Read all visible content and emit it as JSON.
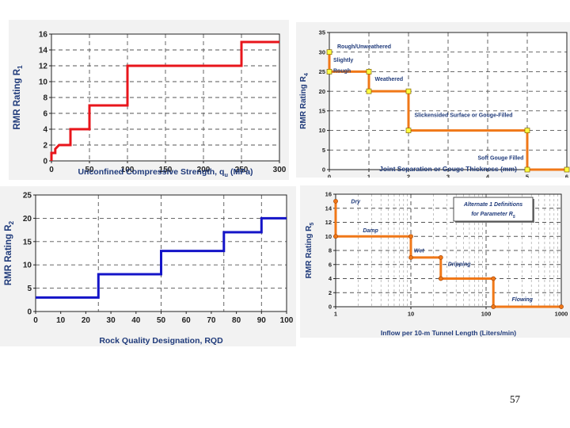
{
  "page_number": "57",
  "colors": {
    "panel_bg": "#f2f2f2",
    "axis_label": "#1f3a7a",
    "grid": "#555555",
    "r1_line": "#e8151b",
    "r2_line": "#1414c8",
    "r4_line": "#f07818",
    "r5_line": "#f07818",
    "marker_fill": "#ffff40",
    "annotation": "#1f3a7a"
  },
  "chart_data": [
    {
      "id": "r1",
      "type": "line",
      "step": true,
      "xlabel": "Unconfined Compressive Strength, q",
      "xlabel_sub": "u",
      "xlabel_suffix": " (MPa)",
      "ylabel": "RMR Rating R",
      "ylabel_sub": "1",
      "xlim": [
        0,
        300
      ],
      "ylim": [
        0,
        16
      ],
      "xticks": [
        "0",
        "50",
        "100",
        "150",
        "200",
        "250",
        "300"
      ],
      "xtick_values": [
        0,
        50,
        100,
        150,
        200,
        250,
        300
      ],
      "yticks": [
        "0",
        "2",
        "4",
        "6",
        "8",
        "10",
        "12",
        "14",
        "16"
      ],
      "ytick_values": [
        0,
        2,
        4,
        6,
        8,
        10,
        12,
        14,
        16
      ],
      "x_gridlines": [
        50,
        100,
        150,
        200,
        250
      ],
      "y_gridlines": [
        2,
        4,
        6,
        8,
        10,
        12,
        14
      ],
      "grid": "dashed",
      "series": [
        {
          "points": [
            [
              0,
              0
            ],
            [
              0,
              1
            ],
            [
              5,
              1
            ],
            [
              5,
              1.5
            ],
            [
              10,
              2
            ],
            [
              25,
              2
            ],
            [
              25,
              4
            ],
            [
              50,
              4
            ],
            [
              50,
              7
            ],
            [
              100,
              7
            ],
            [
              100,
              12
            ],
            [
              250,
              12
            ],
            [
              250,
              15
            ],
            [
              300,
              15
            ]
          ]
        }
      ],
      "markers": []
    },
    {
      "id": "r4",
      "type": "line",
      "step": true,
      "xlabel": "Joint Separation or Gouge Thickness (mm)",
      "ylabel": "RMR Rating R",
      "ylabel_sub": "4",
      "xlim": [
        0,
        6
      ],
      "ylim": [
        0,
        35
      ],
      "xticks": [
        "0",
        "1",
        "2",
        "3",
        "4",
        "5",
        "6"
      ],
      "xtick_values": [
        0,
        1,
        2,
        3,
        4,
        5,
        6
      ],
      "yticks": [
        "0",
        "5",
        "10",
        "15",
        "20",
        "25",
        "30",
        "35"
      ],
      "ytick_values": [
        0,
        5,
        10,
        15,
        20,
        25,
        30,
        35
      ],
      "x_gridlines": [
        1,
        2,
        3,
        4,
        5
      ],
      "y_gridlines": [
        5,
        10,
        15,
        20,
        25,
        30
      ],
      "grid": "dashed",
      "series": [
        {
          "points": [
            [
              0,
              30
            ],
            [
              0,
              25
            ],
            [
              1,
              25
            ],
            [
              1,
              20
            ],
            [
              2,
              20
            ],
            [
              2,
              10
            ],
            [
              5,
              10
            ],
            [
              5,
              0
            ],
            [
              6,
              0
            ]
          ]
        }
      ],
      "markers": [
        [
          0,
          30
        ],
        [
          0,
          25
        ],
        [
          1,
          25
        ],
        [
          1,
          20
        ],
        [
          2,
          20
        ],
        [
          2,
          10
        ],
        [
          5,
          10
        ],
        [
          5,
          0
        ],
        [
          6,
          0
        ]
      ],
      "annotations": [
        {
          "text": "Rough/Unweathered",
          "x": 0.2,
          "y": 31
        },
        {
          "text": "Slightly",
          "x": 0.1,
          "y": 27.5
        },
        {
          "text": "Rough",
          "x": 0.1,
          "y": 24.8
        },
        {
          "text": "Weathered",
          "x": 1.15,
          "y": 22.7
        },
        {
          "text": "Slickensided Surface or Gouge-Filled",
          "x": 2.15,
          "y": 13.5
        },
        {
          "text": "Soft Gouge Filled",
          "x": 3.75,
          "y": 2.5
        }
      ]
    },
    {
      "id": "r2",
      "type": "line",
      "step": true,
      "xlabel": "Rock Quality Designation, RQD",
      "ylabel": "RMR Rating R",
      "ylabel_sub": "2",
      "xlim": [
        0,
        100
      ],
      "ylim": [
        0,
        25
      ],
      "xticks": [
        "0",
        "10",
        "20",
        "30",
        "40",
        "50",
        "60",
        "70",
        "80",
        "90",
        "100"
      ],
      "xtick_values": [
        0,
        10,
        20,
        30,
        40,
        50,
        60,
        70,
        80,
        90,
        100
      ],
      "yticks": [
        "0",
        "5",
        "10",
        "15",
        "20",
        "25"
      ],
      "ytick_values": [
        0,
        5,
        10,
        15,
        20,
        25
      ],
      "x_gridlines": [
        25,
        50,
        75,
        90
      ],
      "y_gridlines": [
        5,
        10,
        15,
        20
      ],
      "grid": "dashed",
      "series": [
        {
          "points": [
            [
              0,
              3
            ],
            [
              25,
              3
            ],
            [
              25,
              8
            ],
            [
              50,
              8
            ],
            [
              50,
              13
            ],
            [
              75,
              13
            ],
            [
              75,
              17
            ],
            [
              90,
              17
            ],
            [
              90,
              20
            ],
            [
              100,
              20
            ]
          ]
        }
      ],
      "markers": []
    },
    {
      "id": "r5",
      "type": "line",
      "step": true,
      "xscale": "log",
      "xlabel": "Inflow per 10-m Tunnel Length (Liters/min)",
      "ylabel": "RMR Rating R",
      "ylabel_sub": "5",
      "xlim": [
        1,
        1000
      ],
      "ylim": [
        0,
        16
      ],
      "xticks": [
        "1",
        "10",
        "100",
        "1000"
      ],
      "xtick_values": [
        1,
        10,
        100,
        1000
      ],
      "yticks": [
        "0",
        "2",
        "4",
        "6",
        "8",
        "10",
        "12",
        "14",
        "16"
      ],
      "ytick_values": [
        0,
        2,
        4,
        6,
        8,
        10,
        12,
        14,
        16
      ],
      "y_gridlines": [
        2,
        4,
        6,
        8,
        10,
        12,
        14
      ],
      "grid": "dashed",
      "series": [
        {
          "points": [
            [
              1,
              15
            ],
            [
              1,
              10
            ],
            [
              10,
              10
            ],
            [
              10,
              7
            ],
            [
              25,
              7
            ],
            [
              25,
              4
            ],
            [
              125,
              4
            ],
            [
              125,
              0
            ],
            [
              1000,
              0
            ]
          ]
        }
      ],
      "markers": [
        [
          1,
          15
        ],
        [
          1,
          10
        ],
        [
          10,
          10
        ],
        [
          10,
          7
        ],
        [
          25,
          7
        ],
        [
          25,
          4
        ],
        [
          125,
          4
        ],
        [
          125,
          0
        ],
        [
          1000,
          0
        ]
      ],
      "annotations": [
        {
          "text": "Dry",
          "x": 1.6,
          "y": 14.7
        },
        {
          "text": "Damp",
          "x": 2.3,
          "y": 10.6
        },
        {
          "text": "Wet",
          "x": 11,
          "y": 7.7
        },
        {
          "text": "- Dripping",
          "x": 28,
          "y": 5.8
        },
        {
          "text": "Flowing",
          "x": 220,
          "y": 0.8
        }
      ],
      "legend_box": {
        "line1": "Alternate 1 Definitions",
        "line2": "for Parameter R",
        "line2_sub": "5"
      }
    }
  ]
}
